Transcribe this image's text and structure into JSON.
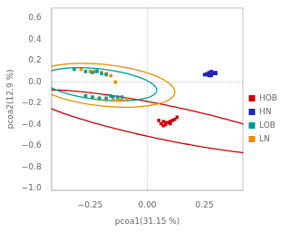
{
  "chart_data": {
    "type": "scatter",
    "xlabel": "pcoa1(31.15 %)",
    "ylabel": "pcoa2(12.9 %)",
    "xlim": [
      -0.42,
      0.42
    ],
    "ylim": [
      -1.02,
      0.7
    ],
    "xticks": [
      {
        "value": -0.25,
        "label": "−0.25"
      },
      {
        "value": 0.0,
        "label": "0.00"
      },
      {
        "value": 0.25,
        "label": "0.25"
      }
    ],
    "yticks": [
      {
        "value": -1.0,
        "label": "−1.0"
      },
      {
        "value": -0.8,
        "label": "−0.8"
      },
      {
        "value": -0.6,
        "label": "−0.6"
      },
      {
        "value": -0.4,
        "label": "−0.4"
      },
      {
        "value": -0.2,
        "label": "−0.2"
      },
      {
        "value": 0.0,
        "label": "0.0"
      },
      {
        "value": 0.2,
        "label": "0.2"
      },
      {
        "value": 0.4,
        "label": "0.4"
      },
      {
        "value": 0.6,
        "label": "0.6"
      }
    ],
    "grid": false,
    "legend": "right",
    "marker": "square",
    "hlines": [
      0
    ],
    "vlines": [
      0
    ],
    "series": [
      {
        "name": "HOB",
        "color": "#cc0000",
        "values": [
          [
            0.05,
            -0.36
          ],
          [
            0.07,
            -0.37
          ],
          [
            0.08,
            -0.38
          ],
          [
            0.09,
            -0.38
          ],
          [
            0.1,
            -0.37
          ],
          [
            0.11,
            -0.36
          ],
          [
            0.06,
            -0.39
          ],
          [
            0.08,
            -0.4
          ],
          [
            0.1,
            -0.39
          ],
          [
            0.12,
            -0.35
          ],
          [
            0.13,
            -0.33
          ],
          [
            0.07,
            -0.41
          ]
        ],
        "ellipse": {
          "cx": 0.08,
          "cy": -0.38,
          "width": 0.3,
          "height": 1.3,
          "angle": 65
        }
      },
      {
        "name": "HN",
        "color": "#2222bb",
        "values": [
          [
            0.25,
            0.07
          ],
          [
            0.26,
            0.07
          ],
          [
            0.27,
            0.08
          ],
          [
            0.28,
            0.07
          ],
          [
            0.29,
            0.08
          ],
          [
            0.27,
            0.09
          ],
          [
            0.28,
            0.1
          ],
          [
            0.29,
            0.09
          ],
          [
            0.3,
            0.08
          ],
          [
            0.26,
            0.08
          ],
          [
            0.27,
            0.06
          ],
          [
            0.3,
            0.09
          ],
          [
            0.28,
            0.06
          ]
        ]
      },
      {
        "name": "LOB",
        "color": "#009999",
        "values": [
          [
            -0.32,
            0.12
          ],
          [
            -0.27,
            0.1
          ],
          [
            -0.24,
            0.09
          ],
          [
            -0.22,
            0.1
          ],
          [
            -0.2,
            0.08
          ],
          [
            -0.18,
            0.07
          ],
          [
            -0.16,
            -0.13
          ],
          [
            -0.18,
            -0.15
          ],
          [
            -0.21,
            -0.15
          ],
          [
            -0.24,
            -0.14
          ],
          [
            -0.27,
            -0.13
          ],
          [
            -0.15,
            -0.14
          ],
          [
            -0.13,
            -0.14
          ],
          [
            -0.11,
            -0.14
          ]
        ],
        "ellipse": {
          "cx": -0.21,
          "cy": -0.02,
          "width": 0.52,
          "height": 0.28,
          "angle": -18
        }
      },
      {
        "name": "LN",
        "color": "#e89000",
        "values": [
          [
            -0.29,
            0.12
          ],
          [
            -0.25,
            0.1
          ],
          [
            -0.22,
            0.11
          ],
          [
            -0.2,
            0.09
          ],
          [
            -0.18,
            0.08
          ],
          [
            -0.23,
            0.1
          ],
          [
            -0.16,
            0.06
          ],
          [
            -0.14,
            0.0
          ],
          [
            -0.21,
            -0.16
          ],
          [
            -0.18,
            -0.17
          ],
          [
            -0.15,
            -0.17
          ],
          [
            -0.13,
            -0.17
          ],
          [
            -0.11,
            -0.17
          ],
          [
            -0.09,
            -0.16
          ],
          [
            -0.24,
            -0.15
          ],
          [
            -0.27,
            -0.13
          ],
          [
            -0.12,
            -0.17
          ]
        ],
        "ellipse": {
          "cx": -0.19,
          "cy": -0.03,
          "width": 0.64,
          "height": 0.38,
          "angle": -18
        }
      }
    ]
  }
}
